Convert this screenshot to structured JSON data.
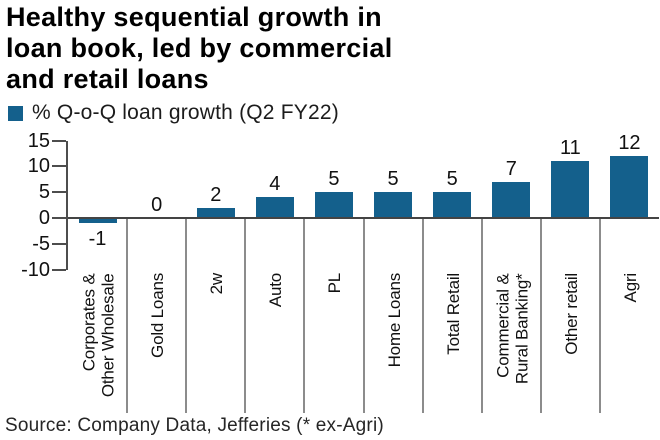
{
  "title": {
    "full": "Healthy sequential growth in loan book, led by commercial and retail loans",
    "lines": [
      "Healthy sequential growth in",
      "loan book, led by commercial",
      "and retail loans"
    ]
  },
  "legend": {
    "label": "% Q-o-Q loan growth (Q2 FY22)"
  },
  "source": "Source: Company Data, Jefferies (* ex-Agri)",
  "colors": {
    "bar": "#14608c",
    "axis": "#4d4d4d",
    "separator": "#8c8c8c",
    "text": "#111111"
  },
  "chart_data": {
    "type": "bar",
    "title": "% Q-o-Q loan growth (Q2 FY22)",
    "categories": [
      "Corporates & Other Wholesale",
      "Gold Loans",
      "2w",
      "Auto",
      "PL",
      "Home Loans",
      "Total Retail",
      "Commercial & Rural Banking*",
      "Other retail",
      "Agri"
    ],
    "category_lines": [
      [
        "Corporates &",
        "Other Wholesale"
      ],
      [
        "Gold Loans"
      ],
      [
        "2w"
      ],
      [
        "Auto"
      ],
      [
        "PL"
      ],
      [
        "Home Loans"
      ],
      [
        "Total Retail"
      ],
      [
        "Commercial &",
        "Rural Banking*"
      ],
      [
        "Other retail"
      ],
      [
        "Agri"
      ]
    ],
    "values": [
      -1,
      0,
      2,
      4,
      5,
      5,
      5,
      7,
      11,
      12
    ],
    "value_labels": [
      "-1",
      "0",
      "2",
      "4",
      "5",
      "5",
      "5",
      "7",
      "11",
      "12"
    ],
    "ylim": [
      -10,
      15
    ],
    "yticks": [
      15,
      10,
      5,
      0,
      -5,
      -10
    ],
    "xlabel": "",
    "ylabel": "",
    "grid": false,
    "legend_position": "top-left"
  }
}
